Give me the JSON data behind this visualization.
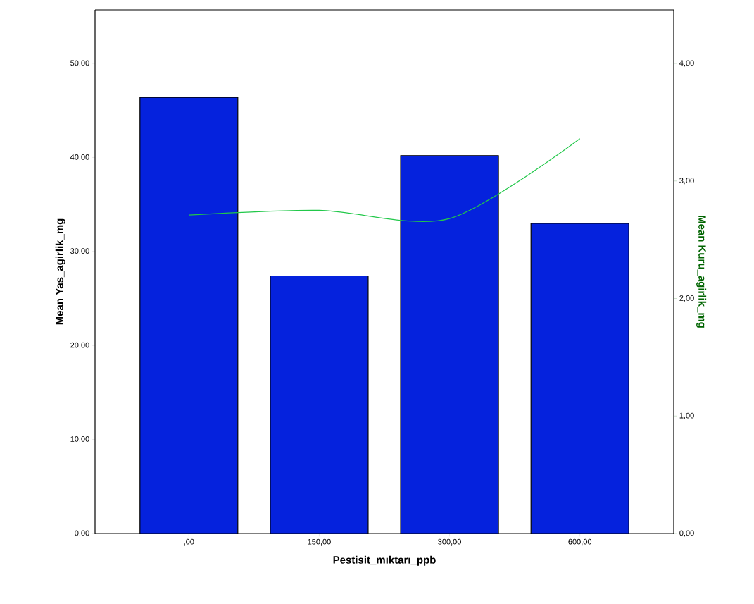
{
  "chart_data": {
    "type": "bar",
    "xlabel": "Pestisit_mıktarı_ppb",
    "ylabel": "Mean Yas_agirlik_mg",
    "y2label": "Mean Kuru_agirlik_mg",
    "categories": [
      ",00",
      "150,00",
      "300,00",
      "600,00"
    ],
    "series": [
      {
        "color": "#0522dd",
        "values": [
          46.4,
          27.4,
          40.2,
          33.0
        ]
      },
      {
        "type": "line",
        "axis": "y2",
        "color": "#22c84a",
        "values": [
          2.71,
          2.75,
          2.68,
          3.36
        ]
      }
    ],
    "ylim": [
      0,
      55.7
    ],
    "yticks": [
      {
        "value": 0,
        "label": "0,00"
      },
      {
        "value": 10,
        "label": "10,00"
      },
      {
        "value": 20,
        "label": "20,00"
      },
      {
        "value": 30,
        "label": "30,00"
      },
      {
        "value": 40,
        "label": "40,00"
      },
      {
        "value": 50,
        "label": "50,00"
      }
    ],
    "y2lim": [
      0,
      4.456
    ],
    "y2ticks": [
      {
        "value": 0,
        "label": "0,00"
      },
      {
        "value": 1,
        "label": "1,00"
      },
      {
        "value": 2,
        "label": "2,00"
      },
      {
        "value": 3,
        "label": "3,00"
      },
      {
        "value": 4,
        "label": "4,00"
      }
    ],
    "grid": false
  }
}
